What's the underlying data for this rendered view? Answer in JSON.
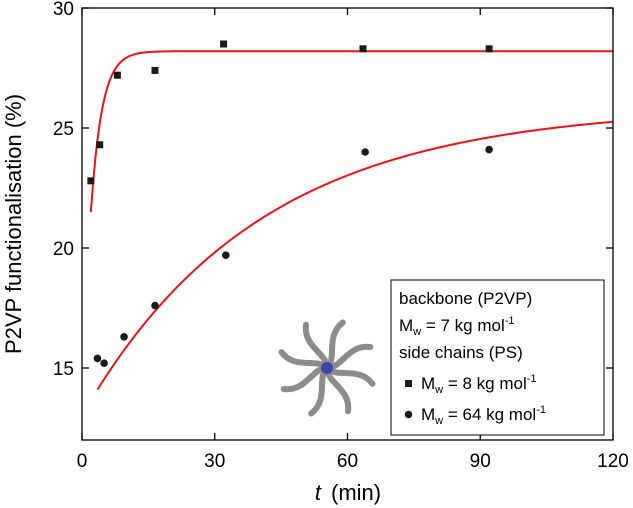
{
  "chart_data": {
    "type": "scatter",
    "xlabel": {
      "italic": "t",
      "rest": "(min)"
    },
    "ylabel": "P2VP functionalisation (%)",
    "xlim": [
      0,
      120
    ],
    "ylim": [
      12,
      30
    ],
    "xticks": [
      0,
      30,
      60,
      90,
      120
    ],
    "yticks": [
      15,
      20,
      25,
      30
    ],
    "grid": false,
    "legend_position": "bottom-right",
    "colors": {
      "fit": "#e8141c",
      "marker": "#1a1a1a",
      "arm": "#8c8c8c",
      "core": "#3a46a8"
    },
    "series": [
      {
        "marker": "square",
        "legend": {
          "prefix": "M",
          "sub": "w",
          "text": " = 8 kg mol",
          "sup": "-1"
        },
        "x": [
          2,
          4,
          8,
          16.5,
          32,
          63.5,
          92
        ],
        "y": [
          22.8,
          24.3,
          27.2,
          27.4,
          28.5,
          28.3,
          28.3
        ],
        "fit": {
          "model": "exp_rise",
          "y0": 21.5,
          "plateau": 28.2,
          "tau": 2.5,
          "x_from": 2,
          "x_to": 120
        }
      },
      {
        "marker": "circle",
        "legend": {
          "prefix": "M",
          "sub": "w",
          "text": " = 64 kg mol",
          "sup": "-1"
        },
        "x": [
          3.5,
          5,
          9.5,
          16.5,
          32.5,
          64,
          92
        ],
        "y": [
          15.4,
          15.2,
          16.3,
          17.6,
          19.7,
          24.0,
          24.1
        ],
        "fit": {
          "model": "exp_rise",
          "y0": 14.1,
          "plateau": 25.9,
          "tau": 40,
          "x_from": 3.5,
          "x_to": 120
        }
      }
    ],
    "legend_header": [
      {
        "text": "backbone (P2VP)"
      },
      {
        "prefix": "M",
        "sub": "w",
        "text": " = 7 kg mol",
        "sup": "-1"
      },
      {
        "text": "side chains (PS)"
      }
    ]
  }
}
